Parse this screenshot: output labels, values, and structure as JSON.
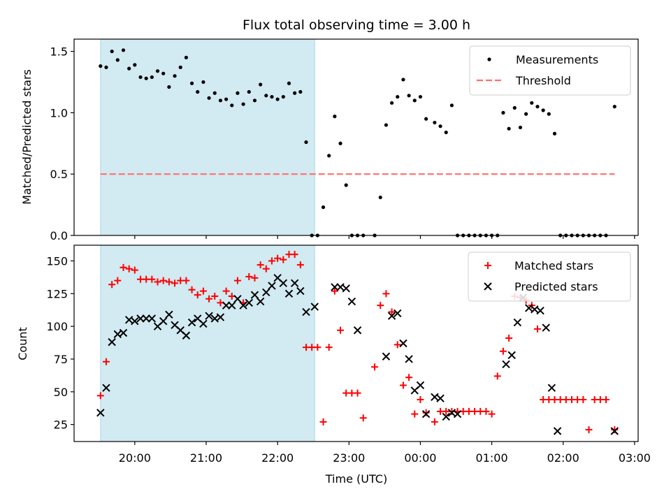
{
  "title": "Flux total observing time = 3.00 h",
  "colors": {
    "shade": "#add8e6",
    "threshold": "#ff6e6e",
    "matched": "#ff0000",
    "predicted": "#000000",
    "measurements": "#000000"
  },
  "chart_data": [
    {
      "type": "scatter",
      "panel": "top",
      "ylabel": "Matched/Predicted stars",
      "ylim": [
        0,
        1.6
      ],
      "yticks": [
        "0.0",
        "0.5",
        "1.0",
        "1.5"
      ],
      "xlim_hours": [
        19.15,
        27.05
      ],
      "shaded_region_hours": [
        19.52,
        22.52
      ],
      "legend_position": "upper right",
      "threshold": {
        "name": "Threshold",
        "y": 0.5,
        "x_range_hours": [
          19.52,
          26.72
        ]
      },
      "series": [
        {
          "name": "Measurements",
          "x_hours": [
            19.52,
            19.6,
            19.68,
            19.76,
            19.84,
            19.92,
            20.0,
            20.08,
            20.16,
            20.24,
            20.32,
            20.4,
            20.48,
            20.56,
            20.64,
            20.72,
            20.8,
            20.88,
            20.96,
            21.04,
            21.12,
            21.2,
            21.28,
            21.36,
            21.44,
            21.52,
            21.6,
            21.68,
            21.76,
            21.84,
            21.92,
            22.0,
            22.08,
            22.16,
            22.24,
            22.32,
            22.4,
            22.48,
            22.56,
            22.64,
            22.72,
            22.8,
            22.88,
            22.96,
            23.04,
            23.12,
            23.2,
            23.36,
            23.44,
            23.52,
            23.6,
            23.68,
            23.76,
            23.84,
            23.92,
            24.0,
            24.08,
            24.2,
            24.28,
            24.36,
            24.44,
            24.52,
            24.6,
            24.68,
            24.76,
            24.84,
            24.92,
            25.0,
            25.08,
            25.16,
            25.24,
            25.32,
            25.4,
            25.48,
            25.56,
            25.64,
            25.72,
            25.8,
            25.88,
            25.96,
            26.04,
            26.12,
            26.2,
            26.28,
            26.36,
            26.44,
            26.52,
            26.6,
            26.72
          ],
          "y": [
            1.38,
            1.37,
            1.5,
            1.43,
            1.51,
            1.36,
            1.39,
            1.29,
            1.28,
            1.29,
            1.34,
            1.32,
            1.21,
            1.3,
            1.37,
            1.45,
            1.24,
            1.17,
            1.25,
            1.12,
            1.16,
            1.1,
            1.11,
            1.06,
            1.16,
            1.07,
            1.17,
            1.1,
            1.23,
            1.14,
            1.13,
            1.11,
            1.13,
            1.24,
            1.16,
            1.17,
            0.76,
            0.0,
            0.0,
            0.23,
            0.65,
            0.97,
            0.75,
            0.41,
            0.0,
            0.0,
            0.0,
            0.0,
            0.31,
            0.9,
            1.08,
            1.13,
            1.27,
            1.14,
            1.1,
            1.13,
            0.95,
            0.92,
            0.89,
            0.84,
            1.06,
            0.0,
            0.0,
            0.0,
            0.0,
            0.0,
            0.0,
            0.0,
            0.0,
            1.0,
            0.87,
            1.04,
            0.88,
            0.99,
            1.08,
            1.05,
            1.02,
            0.99,
            0.83,
            0.0,
            0.0,
            0.0,
            0.0,
            0.0,
            0.0,
            0.0,
            0.0,
            0.0,
            1.05
          ]
        }
      ]
    },
    {
      "type": "scatter",
      "panel": "bottom",
      "xlabel": "Time (UTC)",
      "ylabel": "Count",
      "ylim": [
        12,
        162
      ],
      "yticks": [
        "25",
        "50",
        "75",
        "100",
        "125",
        "150"
      ],
      "xticks": [
        "20:00",
        "21:00",
        "22:00",
        "23:00",
        "00:00",
        "01:00",
        "02:00",
        "03:00"
      ],
      "xlim_hours": [
        19.15,
        27.05
      ],
      "shaded_region_hours": [
        19.52,
        22.52
      ],
      "legend_position": "upper right",
      "series": [
        {
          "name": "Matched stars",
          "marker": "plus",
          "x_hours": [
            19.52,
            19.6,
            19.68,
            19.76,
            19.84,
            19.92,
            20.0,
            20.08,
            20.16,
            20.24,
            20.32,
            20.4,
            20.48,
            20.56,
            20.64,
            20.72,
            20.8,
            20.88,
            20.96,
            21.04,
            21.12,
            21.2,
            21.28,
            21.36,
            21.44,
            21.52,
            21.6,
            21.68,
            21.76,
            21.84,
            21.92,
            22.0,
            22.08,
            22.16,
            22.24,
            22.32,
            22.4,
            22.48,
            22.56,
            22.64,
            22.72,
            22.8,
            22.88,
            22.96,
            23.04,
            23.12,
            23.2,
            23.36,
            23.44,
            23.52,
            23.6,
            23.68,
            23.76,
            23.84,
            23.92,
            24.0,
            24.08,
            24.2,
            24.28,
            24.36,
            24.44,
            24.52,
            24.6,
            24.68,
            24.76,
            24.84,
            24.92,
            25.0,
            25.08,
            25.16,
            25.24,
            25.32,
            25.4,
            25.48,
            25.56,
            25.64,
            25.72,
            25.8,
            25.88,
            25.96,
            26.04,
            26.12,
            26.2,
            26.28,
            26.36,
            26.44,
            26.52,
            26.6,
            26.72
          ],
          "y": [
            47,
            73,
            132,
            135,
            145,
            144,
            143,
            136,
            136,
            136,
            134,
            135,
            134,
            133,
            135,
            135,
            128,
            124,
            127,
            121,
            123,
            118,
            127,
            123,
            135,
            118,
            138,
            137,
            147,
            144,
            150,
            152,
            151,
            155,
            155,
            147,
            84,
            84,
            84,
            27,
            84,
            127,
            97,
            49,
            49,
            49,
            30,
            69,
            116,
            125,
            111,
            86,
            55,
            61,
            33,
            44,
            34,
            27,
            35,
            35,
            35,
            35,
            35,
            35,
            35,
            35,
            35,
            33,
            62,
            81,
            91,
            123,
            122,
            120,
            116,
            98,
            44,
            44,
            44,
            44,
            44,
            44,
            44,
            44,
            21,
            44,
            44,
            44,
            21
          ],
          "_note": "values read approximately from the plot"
        },
        {
          "name": "Predicted stars",
          "marker": "x",
          "x_hours": [
            19.52,
            19.6,
            19.68,
            19.76,
            19.84,
            19.92,
            20.0,
            20.08,
            20.16,
            20.24,
            20.32,
            20.4,
            20.48,
            20.56,
            20.64,
            20.72,
            20.8,
            20.88,
            20.96,
            21.04,
            21.12,
            21.2,
            21.28,
            21.36,
            21.44,
            21.52,
            21.6,
            21.68,
            21.76,
            21.84,
            21.92,
            22.0,
            22.08,
            22.16,
            22.24,
            22.32,
            22.4,
            22.52,
            22.8,
            22.88,
            22.96,
            23.04,
            23.12,
            23.52,
            23.6,
            23.68,
            23.76,
            23.84,
            23.92,
            24.0,
            24.08,
            24.2,
            24.28,
            24.36,
            24.44,
            24.52,
            25.2,
            25.28,
            25.36,
            25.44,
            25.52,
            25.6,
            25.68,
            25.76,
            25.84,
            25.92,
            26.72
          ],
          "y": [
            34,
            53,
            88,
            94,
            95,
            105,
            104,
            106,
            106,
            106,
            100,
            104,
            109,
            101,
            97,
            93,
            103,
            106,
            102,
            108,
            106,
            107,
            116,
            116,
            121,
            116,
            118,
            124,
            119,
            126,
            131,
            137,
            133,
            125,
            133,
            127,
            111,
            115,
            130,
            130,
            129,
            119,
            97,
            77,
            108,
            110,
            87,
            75,
            51,
            55,
            33,
            46,
            45,
            31,
            34,
            33,
            71,
            78,
            103,
            122,
            114,
            113,
            112,
            99,
            53,
            20,
            20
          ]
        }
      ]
    }
  ]
}
